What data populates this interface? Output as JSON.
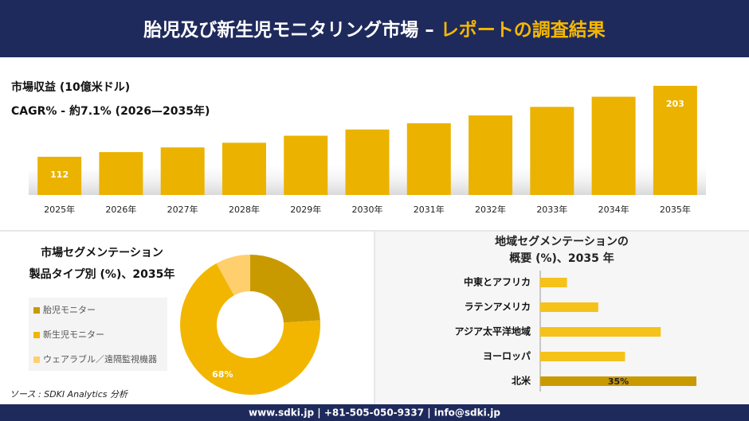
{
  "header": {
    "title": "胎児及び新生児モニタリング市場 –",
    "title_accent": "レポートの調査結果"
  },
  "footer": "www.sdki.jp | +81-505-050-9337 | info@sdki.jp",
  "source": "ソース : SDKI Analytics 分析",
  "chart_data": [
    {
      "type": "bar",
      "title": "市場収益 (10億米ドル)",
      "subtitle": "CAGR% - 約7.1% (2026—2035年)",
      "categories": [
        "2025年",
        "2026年",
        "2027年",
        "2028年",
        "2029年",
        "2030年",
        "2031年",
        "2032年",
        "2033年",
        "2034年",
        "2035年"
      ],
      "values": [
        112,
        118,
        124,
        130,
        139,
        147,
        155,
        165,
        176,
        189,
        203
      ],
      "value_labels": [
        "112",
        null,
        null,
        null,
        null,
        null,
        null,
        null,
        null,
        null,
        "203"
      ],
      "color": "#ecb200",
      "ylim": [
        63,
        211
      ]
    },
    {
      "type": "donut",
      "title": [
        "市場セグメンテーション",
        "製品タイプ別 (%)、2035年"
      ],
      "categories": [
        "胎児モニター",
        "新生児モニター",
        "ウェアラブル／遠隔監視機器"
      ],
      "values": [
        24,
        68,
        8
      ],
      "value_labels": [
        null,
        "68%",
        null
      ],
      "colors": [
        "#c99a00",
        "#f2b600",
        "#ffcf6e"
      ]
    },
    {
      "type": "hbar",
      "title": [
        "地域セグメンテーションの",
        "概要 (%)、2035 年"
      ],
      "categories": [
        "中東とアフリカ",
        "ラテンアメリカ",
        "アジア太平洋地域",
        "ヨーロッパ",
        "北米"
      ],
      "values": [
        6,
        13,
        27,
        19,
        35
      ],
      "value_labels": [
        null,
        null,
        null,
        null,
        "35%"
      ],
      "colors": [
        "#f5c21a",
        "#f5c21a",
        "#f5c21a",
        "#f5c21a",
        "#c99a00"
      ],
      "xlim": [
        0,
        35
      ]
    }
  ]
}
